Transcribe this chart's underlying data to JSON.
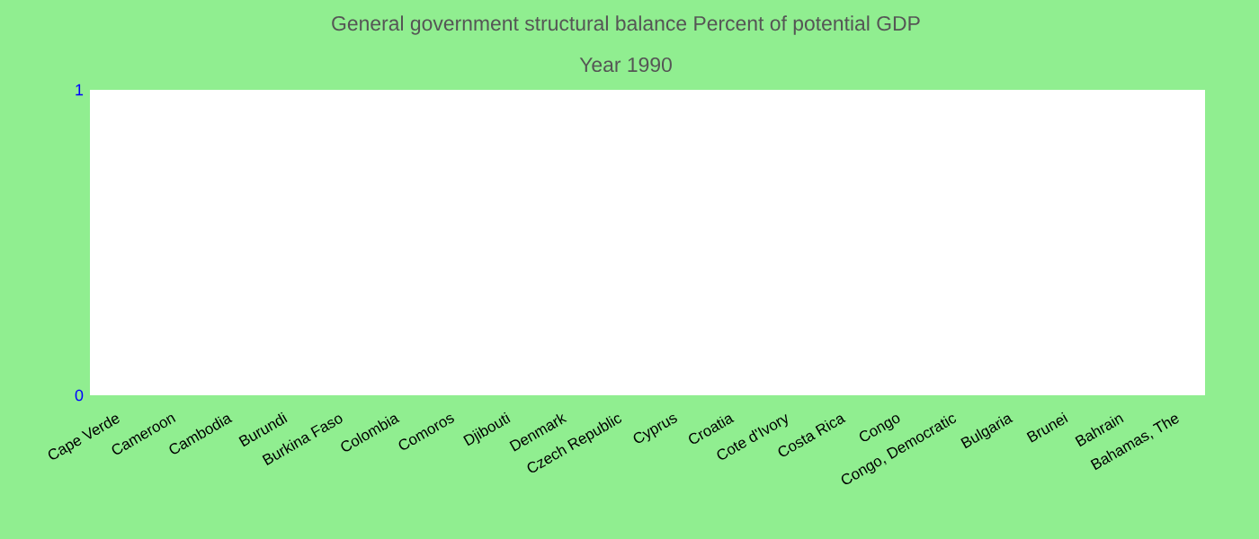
{
  "chart_data": {
    "type": "bar",
    "title": "General government structural balance  Percent of potential GDP",
    "subtitle": "Year 1990",
    "categories": [
      "Cape Verde",
      "Cameroon",
      "Cambodia",
      "Burundi",
      "Burkina Faso",
      "Colombia",
      "Comoros",
      "Djibouti",
      "Denmark",
      "Czech Republic",
      "Cyprus",
      "Croatia",
      "Cote d'Ivory",
      "Costa Rica",
      "Congo",
      "Congo, Democratic",
      "Bulgaria",
      "Brunei",
      "Bahrain",
      "Bahamas, The"
    ],
    "values": [
      null,
      null,
      null,
      null,
      null,
      null,
      null,
      null,
      null,
      null,
      null,
      null,
      null,
      null,
      null,
      null,
      null,
      null,
      null,
      null
    ],
    "ylim": [
      0,
      1
    ],
    "yticks": [
      0,
      1
    ]
  }
}
